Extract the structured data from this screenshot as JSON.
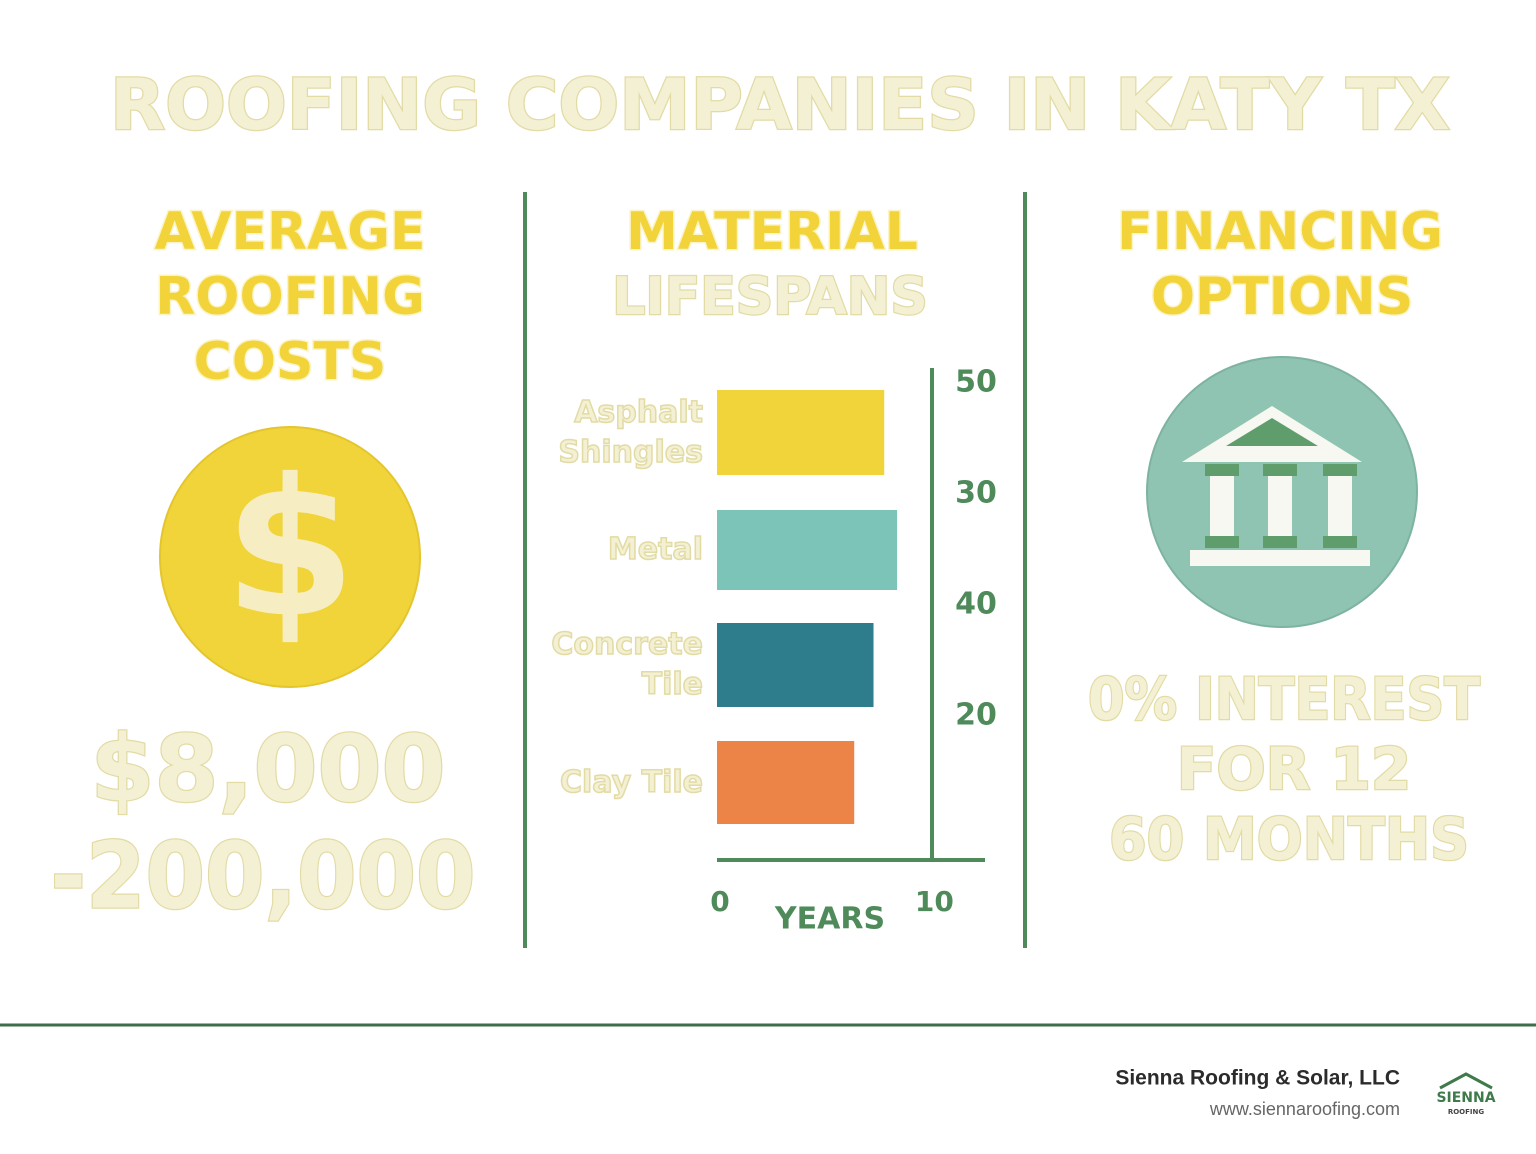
{
  "title": "ROOFING COMPANIES IN KATY TX",
  "costs": {
    "heading": [
      "AVERAGE",
      "ROOFING",
      "COSTS"
    ],
    "icon": "$",
    "range": [
      "$8,000",
      "-200,000"
    ]
  },
  "chart_data": {
    "type": "bar",
    "title": [
      "MATERIAL",
      "LIFESPANS"
    ],
    "categories": [
      "Asphalt Shingles",
      "Metal",
      "Concrete Tile",
      "Clay Tile"
    ],
    "values": [
      7.8,
      8.4,
      7.3,
      6.4
    ],
    "colors": [
      "#f0d43a",
      "#7cc4b8",
      "#2e7d8c",
      "#ec8447"
    ],
    "xlim": [
      0,
      12.5
    ],
    "xticks": [
      0,
      10
    ],
    "xlabel": "YEARS",
    "side_labels": [
      "50",
      "30",
      "40",
      "20"
    ]
  },
  "financing": {
    "heading": [
      "FINANCING",
      "OPTIONS"
    ],
    "offer": [
      "0% INTEREST",
      "FOR 12",
      "60 MONTHS"
    ]
  },
  "footer": {
    "company": "Sienna Roofing & Solar, LLC",
    "url": "www.siennaroofing.com",
    "logo": [
      "SIENNA",
      "ROOFING"
    ]
  }
}
